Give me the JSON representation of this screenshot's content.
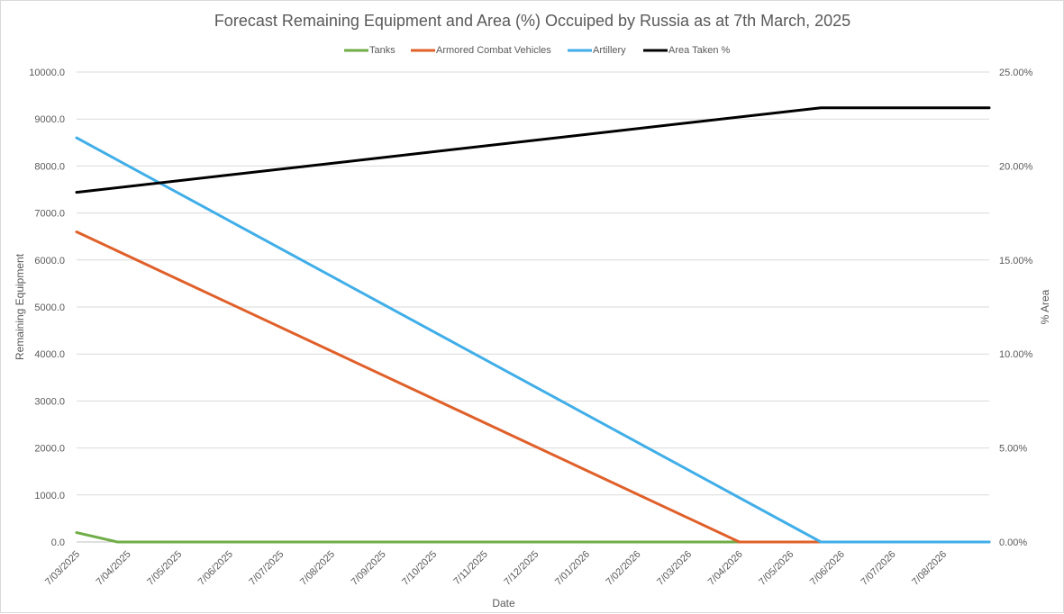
{
  "chart_data": {
    "type": "line",
    "title": "Forecast Remaining Equipment and Area (%) Occuiped by Russia as at 7th March, 2025",
    "xlabel": "Date",
    "ylabel": "Remaining Equipment",
    "y2label": "% Area",
    "ylim": [
      0,
      10000
    ],
    "y2lim": [
      0,
      25
    ],
    "y_ticks": [
      "0.0",
      "1000.0",
      "2000.0",
      "3000.0",
      "4000.0",
      "5000.0",
      "6000.0",
      "7000.0",
      "8000.0",
      "9000.0",
      "10000.0"
    ],
    "y2_ticks": [
      "0.00%",
      "5.00%",
      "10.00%",
      "15.00%",
      "20.00%",
      "25.00%"
    ],
    "x_ticks": [
      "7/03/2025",
      "7/04/2025",
      "7/05/2025",
      "7/06/2025",
      "7/07/2025",
      "7/08/2025",
      "7/09/2025",
      "7/10/2025",
      "7/11/2025",
      "7/12/2025",
      "7/01/2026",
      "7/02/2026",
      "7/03/2026",
      "7/04/2026",
      "7/05/2026",
      "7/06/2026",
      "7/07/2026",
      "7/08/2026"
    ],
    "x_unit": "months since 7/03/2025",
    "xlim": [
      0,
      17.9
    ],
    "legend_position": "top",
    "series": [
      {
        "name": "Tanks",
        "axis": "left",
        "color": "#70ad47",
        "x": [
          0,
          0.8,
          17.9
        ],
        "y": [
          200,
          0,
          0
        ]
      },
      {
        "name": "Armored Combat Vehicles",
        "axis": "left",
        "color": "#e0602a",
        "x": [
          0,
          13.0,
          17.9
        ],
        "y": [
          6600,
          0,
          0
        ]
      },
      {
        "name": "Artillery",
        "axis": "left",
        "color": "#40aee8",
        "x": [
          0,
          14.6,
          17.9
        ],
        "y": [
          8600,
          0,
          0
        ]
      },
      {
        "name": "Area Taken %",
        "axis": "right",
        "color": "#000000",
        "x": [
          0,
          14.6,
          17.9
        ],
        "y": [
          18.6,
          23.1,
          23.1
        ]
      }
    ]
  }
}
